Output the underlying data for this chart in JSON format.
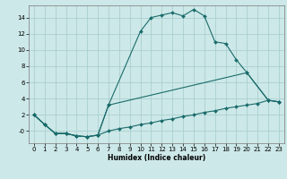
{
  "xlabel": "Humidex (Indice chaleur)",
  "ylabel": "",
  "bg_color": "#cde8e8",
  "grid_color": "#aacfcf",
  "line_color": "#1a6b6b",
  "xlim": [
    -0.5,
    23.5
  ],
  "ylim": [
    -1.5,
    15.5
  ],
  "xticks": [
    0,
    1,
    2,
    3,
    4,
    5,
    6,
    7,
    8,
    9,
    10,
    11,
    12,
    13,
    14,
    15,
    16,
    17,
    18,
    19,
    20,
    21,
    22,
    23
  ],
  "yticks": [
    0,
    2,
    4,
    6,
    8,
    10,
    12,
    14
  ],
  "ytick_labels": [
    "-0",
    "2",
    "4",
    "6",
    "8",
    "10",
    "12",
    "14"
  ],
  "line1_x": [
    0,
    1,
    2,
    3,
    4,
    5,
    6,
    7,
    10,
    11,
    12,
    13,
    14,
    15,
    16,
    17,
    18,
    19,
    20,
    22,
    23
  ],
  "line1_y": [
    2.0,
    0.8,
    -0.3,
    -0.3,
    -0.6,
    -0.7,
    -0.5,
    3.2,
    12.3,
    14.0,
    14.3,
    14.6,
    14.2,
    15.0,
    14.2,
    11.0,
    10.8,
    8.8,
    7.2,
    3.8,
    3.6
  ],
  "line2_x": [
    0,
    1,
    2,
    3,
    4,
    5,
    6,
    7,
    20,
    22,
    23
  ],
  "line2_y": [
    2.0,
    0.8,
    -0.3,
    -0.3,
    -0.6,
    -0.7,
    -0.5,
    3.2,
    7.2,
    3.8,
    3.6
  ],
  "line3_x": [
    0,
    1,
    2,
    3,
    4,
    5,
    6,
    7,
    8,
    9,
    10,
    11,
    12,
    13,
    14,
    15,
    16,
    17,
    18,
    19,
    20,
    21,
    22,
    23
  ],
  "line3_y": [
    2.0,
    0.8,
    -0.3,
    -0.3,
    -0.6,
    -0.7,
    -0.5,
    0.0,
    0.3,
    0.5,
    0.8,
    1.0,
    1.3,
    1.5,
    1.8,
    2.0,
    2.3,
    2.5,
    2.8,
    3.0,
    3.2,
    3.4,
    3.8,
    3.6
  ]
}
